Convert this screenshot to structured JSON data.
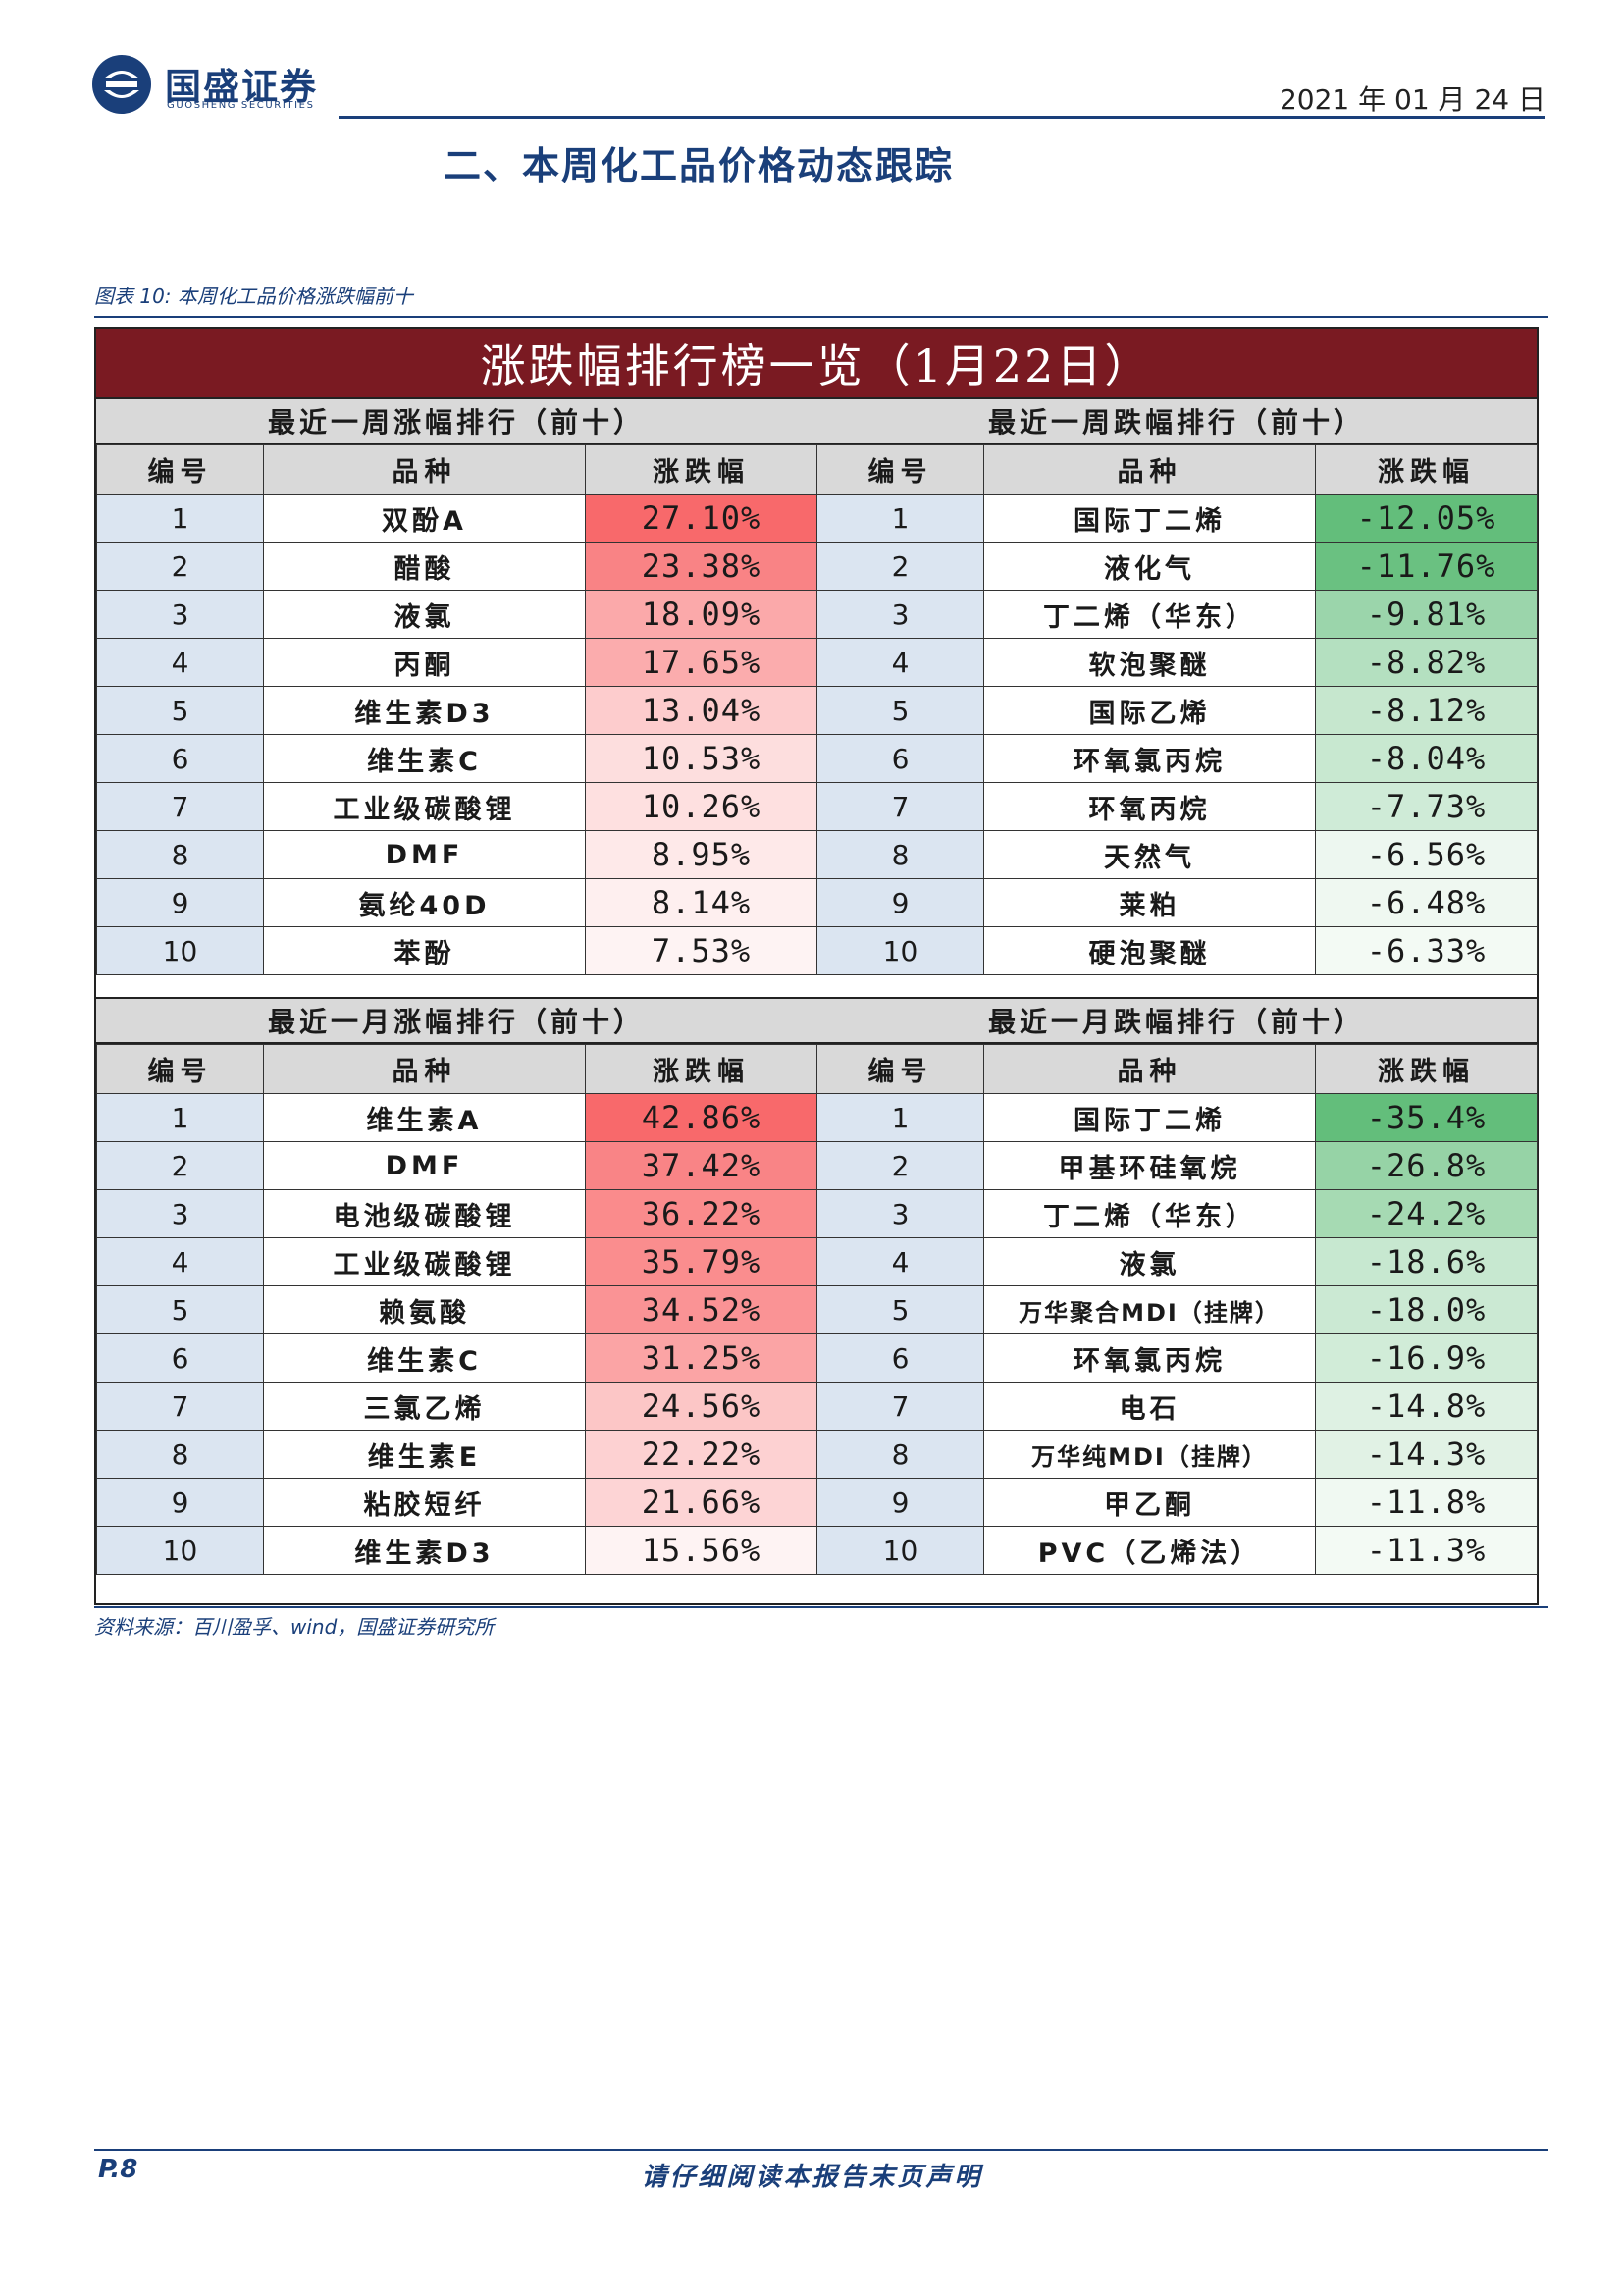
{
  "header": {
    "logo_cn": "国盛证券",
    "logo_en": "GUOSHENG SECURITIES",
    "date": "2021 年 01 月 24 日"
  },
  "section_title": "二、本周化工品价格动态跟踪",
  "figure": {
    "caption": "图表 10: 本周化工品价格涨跌幅前十",
    "banner": "涨跌幅排行榜一览（1月22日）",
    "col_headers": [
      "编号",
      "品种",
      "涨跌幅"
    ],
    "blocks": [
      {
        "title": "最近一周涨幅排行（前十）",
        "rows": [
          {
            "n": "1",
            "name": "双酚A",
            "val": "27.10%",
            "pct": 27.1
          },
          {
            "n": "2",
            "name": "醋酸",
            "val": "23.38%",
            "pct": 23.38
          },
          {
            "n": "3",
            "name": "液氯",
            "val": "18.09%",
            "pct": 18.09
          },
          {
            "n": "4",
            "name": "丙酮",
            "val": "17.65%",
            "pct": 17.65
          },
          {
            "n": "5",
            "name": "维生素D3",
            "val": "13.04%",
            "pct": 13.04
          },
          {
            "n": "6",
            "name": "维生素C",
            "val": "10.53%",
            "pct": 10.53
          },
          {
            "n": "7",
            "name": "工业级碳酸锂",
            "val": "10.26%",
            "pct": 10.26
          },
          {
            "n": "8",
            "name": "DMF",
            "val": "8.95%",
            "pct": 8.95
          },
          {
            "n": "9",
            "name": "氨纶40D",
            "val": "8.14%",
            "pct": 8.14
          },
          {
            "n": "10",
            "name": "苯酚",
            "val": "7.53%",
            "pct": 7.53
          }
        ]
      },
      {
        "title": "最近一周跌幅排行（前十）",
        "rows": [
          {
            "n": "1",
            "name": "国际丁二烯",
            "val": "-12.05%",
            "pct": -12.05
          },
          {
            "n": "2",
            "name": "液化气",
            "val": "-11.76%",
            "pct": -11.76
          },
          {
            "n": "3",
            "name": "丁二烯（华东）",
            "val": "-9.81%",
            "pct": -9.81
          },
          {
            "n": "4",
            "name": "软泡聚醚",
            "val": "-8.82%",
            "pct": -8.82
          },
          {
            "n": "5",
            "name": "国际乙烯",
            "val": "-8.12%",
            "pct": -8.12
          },
          {
            "n": "6",
            "name": "环氧氯丙烷",
            "val": "-8.04%",
            "pct": -8.04
          },
          {
            "n": "7",
            "name": "环氧丙烷",
            "val": "-7.73%",
            "pct": -7.73
          },
          {
            "n": "8",
            "name": "天然气",
            "val": "-6.56%",
            "pct": -6.56
          },
          {
            "n": "9",
            "name": "莱粕",
            "val": "-6.48%",
            "pct": -6.48
          },
          {
            "n": "10",
            "name": "硬泡聚醚",
            "val": "-6.33%",
            "pct": -6.33
          }
        ]
      },
      {
        "title": "最近一月涨幅排行（前十）",
        "rows": [
          {
            "n": "1",
            "name": "维生素A",
            "val": "42.86%",
            "pct": 42.86
          },
          {
            "n": "2",
            "name": "DMF",
            "val": "37.42%",
            "pct": 37.42
          },
          {
            "n": "3",
            "name": "电池级碳酸锂",
            "val": "36.22%",
            "pct": 36.22
          },
          {
            "n": "4",
            "name": "工业级碳酸锂",
            "val": "35.79%",
            "pct": 35.79
          },
          {
            "n": "5",
            "name": "赖氨酸",
            "val": "34.52%",
            "pct": 34.52
          },
          {
            "n": "6",
            "name": "维生素C",
            "val": "31.25%",
            "pct": 31.25
          },
          {
            "n": "7",
            "name": "三氯乙烯",
            "val": "24.56%",
            "pct": 24.56
          },
          {
            "n": "8",
            "name": "维生素E",
            "val": "22.22%",
            "pct": 22.22
          },
          {
            "n": "9",
            "name": "粘胶短纤",
            "val": "21.66%",
            "pct": 21.66
          },
          {
            "n": "10",
            "name": "维生素D3",
            "val": "15.56%",
            "pct": 15.56
          }
        ]
      },
      {
        "title": "最近一月跌幅排行（前十）",
        "rows": [
          {
            "n": "1",
            "name": "国际丁二烯",
            "val": "-35.4%",
            "pct": -35.4
          },
          {
            "n": "2",
            "name": "甲基环硅氧烷",
            "val": "-26.8%",
            "pct": -26.8
          },
          {
            "n": "3",
            "name": "丁二烯（华东）",
            "val": "-24.2%",
            "pct": -24.2
          },
          {
            "n": "4",
            "name": "液氯",
            "val": "-18.6%",
            "pct": -18.6
          },
          {
            "n": "5",
            "name": "万华聚合MDI（挂牌）",
            "val": "-18.0%",
            "pct": -18.0
          },
          {
            "n": "6",
            "name": "环氧氯丙烷",
            "val": "-16.9%",
            "pct": -16.9
          },
          {
            "n": "7",
            "name": "电石",
            "val": "-14.8%",
            "pct": -14.8
          },
          {
            "n": "8",
            "name": "万华纯MDI（挂牌）",
            "val": "-14.3%",
            "pct": -14.3
          },
          {
            "n": "9",
            "name": "甲乙酮",
            "val": "-11.8%",
            "pct": -11.8
          },
          {
            "n": "10",
            "name": "PVC（乙烯法）",
            "val": "-11.3%",
            "pct": -11.3
          }
        ]
      }
    ],
    "source": "资料来源：百川盈孚、wind，国盛证券研究所"
  },
  "footer": {
    "page": "P.8",
    "disclaimer": "请仔细阅读本报告末页声明"
  },
  "colors": {
    "brand_blue": "#1a3f7a",
    "banner_red": "#7a1a22",
    "up_strong": "#f8696b",
    "down_strong": "#63be7b"
  }
}
